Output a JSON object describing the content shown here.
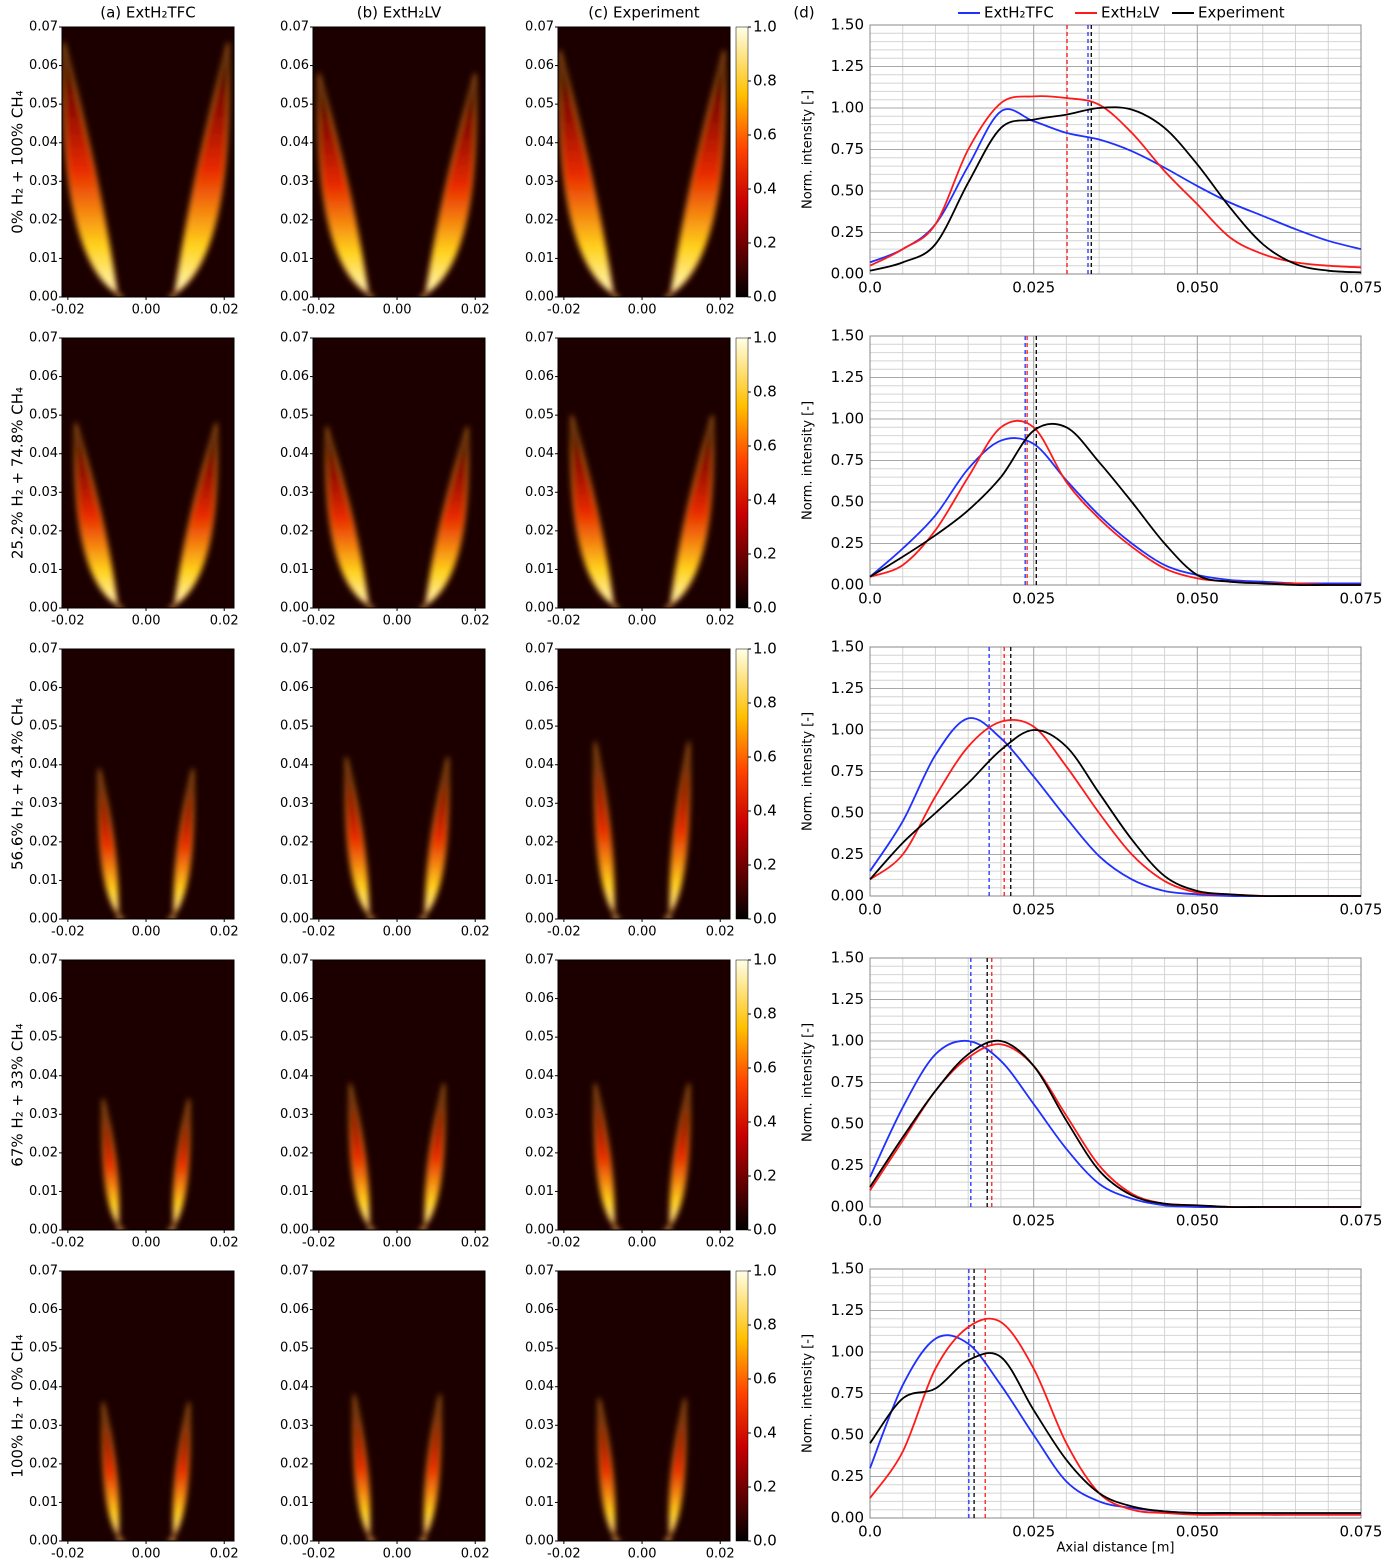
{
  "panel_label": "(d)",
  "heatmaps": {
    "type": "heatmap",
    "column_titles": [
      "(a) ExtH₂TFC",
      "(b) ExtH₂LV",
      "(c) Experiment"
    ],
    "row_labels": [
      "0% H₂ + 100% CH₄",
      "25.2% H₂ + 74.8% CH₄",
      "56.6% H₂ + 43.4% CH₄",
      "67% H₂ + 33% CH₄",
      "100% H₂ + 0% CH₄"
    ],
    "xlim": [
      -0.0215,
      0.0225
    ],
    "xticks": [
      {
        "value": -0.02,
        "label": "-0.02"
      },
      {
        "value": 0,
        "label": "0.00"
      },
      {
        "value": 0.02,
        "label": "0.02"
      }
    ],
    "ylim": [
      0,
      0.07
    ],
    "yticks": [
      {
        "value": 0,
        "label": "0.00"
      },
      {
        "value": 0.01,
        "label": "0.01"
      },
      {
        "value": 0.02,
        "label": "0.02"
      },
      {
        "value": 0.03,
        "label": "0.03"
      },
      {
        "value": 0.04,
        "label": "0.04"
      },
      {
        "value": 0.05,
        "label": "0.05"
      },
      {
        "value": 0.06,
        "label": "0.06"
      },
      {
        "value": 0.07,
        "label": "0.07"
      }
    ],
    "colorbar": {
      "lim": [
        0,
        1
      ],
      "ticks": [
        {
          "value": 0,
          "label": "0.0"
        },
        {
          "value": 0.2,
          "label": "0.2"
        },
        {
          "value": 0.4,
          "label": "0.4"
        },
        {
          "value": 0.6,
          "label": "0.6"
        },
        {
          "value": 0.8,
          "label": "0.8"
        },
        {
          "value": 1,
          "label": "1.0"
        }
      ]
    },
    "flame_tips": [
      [
        [
          0.021,
          0.066
        ],
        [
          0.02,
          0.058
        ],
        [
          0.021,
          0.064
        ]
      ],
      [
        [
          0.018,
          0.048
        ],
        [
          0.018,
          0.047
        ],
        [
          0.018,
          0.05
        ]
      ],
      [
        [
          0.012,
          0.039
        ],
        [
          0.013,
          0.042
        ],
        [
          0.012,
          0.046
        ]
      ],
      [
        [
          0.011,
          0.034
        ],
        [
          0.012,
          0.038
        ],
        [
          0.012,
          0.038
        ]
      ],
      [
        [
          0.011,
          0.036
        ],
        [
          0.011,
          0.038
        ],
        [
          0.011,
          0.037
        ]
      ]
    ]
  },
  "chart_data": [
    {
      "type": "line",
      "y_label": "Norm. intensity [-]",
      "x": [
        0,
        0.005,
        0.01,
        0.015,
        0.02,
        0.025,
        0.03,
        0.035,
        0.04,
        0.045,
        0.05,
        0.055,
        0.06,
        0.065,
        0.07,
        0.075
      ],
      "xlim": [
        0,
        0.075
      ],
      "xticks": [
        {
          "value": 0,
          "label": "0.0"
        },
        {
          "value": 0.025,
          "label": "0.025"
        },
        {
          "value": 0.05,
          "label": "0.050"
        },
        {
          "value": 0.075,
          "label": "0.075"
        }
      ],
      "ylim": [
        0,
        1.5
      ],
      "yticks": [
        {
          "value": 0,
          "label": "0.00"
        },
        {
          "value": 0.25,
          "label": "0.25"
        },
        {
          "value": 0.5,
          "label": "0.50"
        },
        {
          "value": 0.75,
          "label": "0.75"
        },
        {
          "value": 1,
          "label": "1.00"
        },
        {
          "value": 1.25,
          "label": "1.25"
        },
        {
          "value": 1.5,
          "label": "1.50"
        }
      ],
      "grid": true,
      "minor_grid": true,
      "series": [
        {
          "name": "ExtH₂TFC",
          "color": "#1f30ff",
          "dashed_x": 0.0333,
          "values": [
            0.07,
            0.15,
            0.3,
            0.65,
            0.98,
            0.92,
            0.85,
            0.81,
            0.74,
            0.64,
            0.53,
            0.43,
            0.35,
            0.27,
            0.2,
            0.15
          ]
        },
        {
          "name": "ExtH₂LV",
          "color": "#ff1a1a",
          "dashed_x": 0.0301,
          "values": [
            0.05,
            0.15,
            0.3,
            0.75,
            1.03,
            1.07,
            1.06,
            1.02,
            0.85,
            0.62,
            0.42,
            0.22,
            0.12,
            0.07,
            0.05,
            0.04
          ]
        },
        {
          "name": "Experiment",
          "color": "#000000",
          "dashed_x": 0.0338,
          "values": [
            0.02,
            0.07,
            0.18,
            0.55,
            0.88,
            0.93,
            0.96,
            1.0,
            0.99,
            0.88,
            0.66,
            0.4,
            0.18,
            0.06,
            0.02,
            0.01
          ]
        }
      ]
    },
    {
      "type": "line",
      "y_label": "Norm. intensity [-]",
      "x": [
        0,
        0.005,
        0.01,
        0.015,
        0.02,
        0.025,
        0.03,
        0.035,
        0.04,
        0.045,
        0.05,
        0.055,
        0.06,
        0.065,
        0.07,
        0.075
      ],
      "xlim": [
        0,
        0.075
      ],
      "xticks": [
        {
          "value": 0,
          "label": "0.0"
        },
        {
          "value": 0.025,
          "label": "0.025"
        },
        {
          "value": 0.05,
          "label": "0.050"
        },
        {
          "value": 0.075,
          "label": "0.075"
        }
      ],
      "ylim": [
        0,
        1.5
      ],
      "yticks": [
        {
          "value": 0,
          "label": "0.00"
        },
        {
          "value": 0.25,
          "label": "0.25"
        },
        {
          "value": 0.5,
          "label": "0.50"
        },
        {
          "value": 0.75,
          "label": "0.75"
        },
        {
          "value": 1,
          "label": "1.00"
        },
        {
          "value": 1.25,
          "label": "1.25"
        },
        {
          "value": 1.5,
          "label": "1.50"
        }
      ],
      "grid": true,
      "minor_grid": true,
      "series": [
        {
          "color": "#1f30ff",
          "dashed_x": 0.0237,
          "values": [
            0.05,
            0.22,
            0.42,
            0.7,
            0.87,
            0.85,
            0.63,
            0.42,
            0.25,
            0.12,
            0.06,
            0.03,
            0.02,
            0.01,
            0.01,
            0.01
          ]
        },
        {
          "color": "#ff1a1a",
          "dashed_x": 0.024,
          "values": [
            0.05,
            0.12,
            0.33,
            0.65,
            0.95,
            0.95,
            0.62,
            0.4,
            0.23,
            0.1,
            0.04,
            0.02,
            0.01,
            0.01,
            0,
            0
          ]
        },
        {
          "color": "#000000",
          "dashed_x": 0.0254,
          "values": [
            0.05,
            0.17,
            0.3,
            0.45,
            0.65,
            0.93,
            0.95,
            0.74,
            0.5,
            0.25,
            0.06,
            0.02,
            0.01,
            0,
            0,
            0
          ]
        }
      ]
    },
    {
      "type": "line",
      "y_label": "Norm. intensity [-]",
      "x": [
        0,
        0.005,
        0.01,
        0.015,
        0.02,
        0.025,
        0.03,
        0.035,
        0.04,
        0.045,
        0.05,
        0.055,
        0.06,
        0.065,
        0.07,
        0.075
      ],
      "xlim": [
        0,
        0.075
      ],
      "xticks": [
        {
          "value": 0,
          "label": "0.0"
        },
        {
          "value": 0.025,
          "label": "0.025"
        },
        {
          "value": 0.05,
          "label": "0.050"
        },
        {
          "value": 0.075,
          "label": "0.075"
        }
      ],
      "ylim": [
        0,
        1.5
      ],
      "yticks": [
        {
          "value": 0,
          "label": "0.00"
        },
        {
          "value": 0.25,
          "label": "0.25"
        },
        {
          "value": 0.5,
          "label": "0.50"
        },
        {
          "value": 0.75,
          "label": "0.75"
        },
        {
          "value": 1,
          "label": "1.00"
        },
        {
          "value": 1.25,
          "label": "1.25"
        },
        {
          "value": 1.5,
          "label": "1.50"
        }
      ],
      "grid": true,
      "minor_grid": true,
      "series": [
        {
          "color": "#1f30ff",
          "dashed_x": 0.0182,
          "values": [
            0.15,
            0.45,
            0.85,
            1.07,
            0.95,
            0.72,
            0.47,
            0.24,
            0.1,
            0.03,
            0.01,
            0,
            0,
            0,
            0,
            0
          ]
        },
        {
          "color": "#ff1a1a",
          "dashed_x": 0.0205,
          "values": [
            0.1,
            0.25,
            0.6,
            0.9,
            1.05,
            1.02,
            0.78,
            0.5,
            0.25,
            0.09,
            0.02,
            0.01,
            0,
            0,
            0,
            0
          ]
        },
        {
          "color": "#000000",
          "dashed_x": 0.0215,
          "values": [
            0.1,
            0.32,
            0.5,
            0.68,
            0.88,
            1.0,
            0.9,
            0.62,
            0.34,
            0.12,
            0.03,
            0.01,
            0,
            0,
            0,
            0
          ]
        }
      ]
    },
    {
      "type": "line",
      "y_label": "Norm. intensity [-]",
      "x": [
        0,
        0.005,
        0.01,
        0.015,
        0.02,
        0.025,
        0.03,
        0.035,
        0.04,
        0.045,
        0.05,
        0.055,
        0.06,
        0.065,
        0.07,
        0.075
      ],
      "xlim": [
        0,
        0.075
      ],
      "xticks": [
        {
          "value": 0,
          "label": "0.0"
        },
        {
          "value": 0.025,
          "label": "0.025"
        },
        {
          "value": 0.05,
          "label": "0.050"
        },
        {
          "value": 0.075,
          "label": "0.075"
        }
      ],
      "ylim": [
        0,
        1.5
      ],
      "yticks": [
        {
          "value": 0,
          "label": "0.00"
        },
        {
          "value": 0.25,
          "label": "0.25"
        },
        {
          "value": 0.5,
          "label": "0.50"
        },
        {
          "value": 0.75,
          "label": "0.75"
        },
        {
          "value": 1,
          "label": "1.00"
        },
        {
          "value": 1.25,
          "label": "1.25"
        },
        {
          "value": 1.5,
          "label": "1.50"
        }
      ],
      "grid": true,
      "minor_grid": true,
      "series": [
        {
          "color": "#1f30ff",
          "dashed_x": 0.0154,
          "values": [
            0.18,
            0.6,
            0.92,
            1.0,
            0.88,
            0.62,
            0.35,
            0.14,
            0.05,
            0.01,
            0,
            0,
            0,
            0,
            0,
            0
          ]
        },
        {
          "color": "#ff1a1a",
          "dashed_x": 0.0186,
          "values": [
            0.1,
            0.4,
            0.7,
            0.9,
            0.98,
            0.85,
            0.55,
            0.25,
            0.08,
            0.02,
            0.01,
            0,
            0,
            0,
            0,
            0
          ]
        },
        {
          "color": "#000000",
          "dashed_x": 0.0179,
          "values": [
            0.12,
            0.42,
            0.7,
            0.92,
            1.0,
            0.85,
            0.52,
            0.22,
            0.07,
            0.02,
            0.01,
            0,
            0,
            0,
            0,
            0
          ]
        }
      ]
    },
    {
      "type": "line",
      "y_label": "Norm. intensity [-]",
      "x_label": "Axial distance [m]",
      "x": [
        0,
        0.005,
        0.01,
        0.015,
        0.02,
        0.025,
        0.03,
        0.035,
        0.04,
        0.045,
        0.05,
        0.055,
        0.06,
        0.065,
        0.07,
        0.075
      ],
      "xlim": [
        0,
        0.075
      ],
      "xticks": [
        {
          "value": 0,
          "label": "0.0"
        },
        {
          "value": 0.025,
          "label": "0.025"
        },
        {
          "value": 0.05,
          "label": "0.050"
        },
        {
          "value": 0.075,
          "label": "0.075"
        }
      ],
      "ylim": [
        0,
        1.5
      ],
      "yticks": [
        {
          "value": 0,
          "label": "0.00"
        },
        {
          "value": 0.25,
          "label": "0.25"
        },
        {
          "value": 0.5,
          "label": "0.50"
        },
        {
          "value": 0.75,
          "label": "0.75"
        },
        {
          "value": 1,
          "label": "1.00"
        },
        {
          "value": 1.25,
          "label": "1.25"
        },
        {
          "value": 1.5,
          "label": "1.50"
        }
      ],
      "grid": true,
      "minor_grid": true,
      "series": [
        {
          "color": "#1f30ff",
          "dashed_x": 0.0151,
          "values": [
            0.3,
            0.8,
            1.08,
            1.05,
            0.8,
            0.5,
            0.22,
            0.1,
            0.06,
            0.04,
            0.03,
            0.03,
            0.02,
            0.02,
            0.02,
            0.02
          ]
        },
        {
          "color": "#ff1a1a",
          "dashed_x": 0.0176,
          "values": [
            0.12,
            0.4,
            0.9,
            1.15,
            1.18,
            0.9,
            0.45,
            0.15,
            0.05,
            0.03,
            0.02,
            0.02,
            0.02,
            0.02,
            0.02,
            0.02
          ]
        },
        {
          "color": "#000000",
          "dashed_x": 0.0159,
          "values": [
            0.45,
            0.72,
            0.78,
            0.95,
            0.97,
            0.65,
            0.35,
            0.15,
            0.07,
            0.04,
            0.03,
            0.03,
            0.03,
            0.03,
            0.03,
            0.03
          ]
        }
      ]
    }
  ]
}
